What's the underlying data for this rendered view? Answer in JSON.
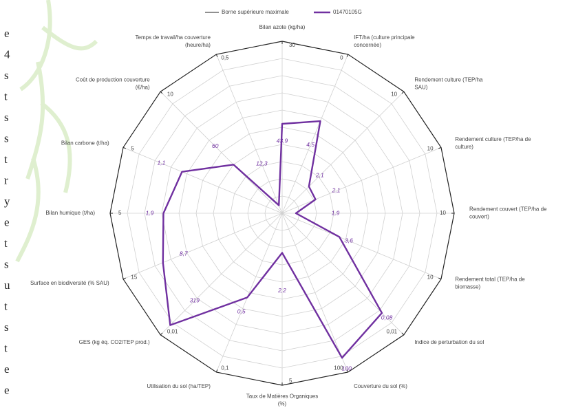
{
  "chart_data": {
    "type": "radar",
    "legend": [
      "Borne supérieure maximale"
    ],
    "rlim": [
      0,
      100
    ],
    "axes": [
      {
        "label_lines": [
          "Bilan azote (kg/ha)"
        ],
        "max": 30
      },
      {
        "label_lines": [
          "IFT/ha (culture principale",
          "concernée)"
        ],
        "max": 0
      },
      {
        "label_lines": [
          "Rendement culture (TEP/ha",
          "SAU)"
        ],
        "max": 10
      },
      {
        "label_lines": [
          "Rendement culture (TEP/ha de",
          "culture)"
        ],
        "max": 10
      },
      {
        "label_lines": [
          "Rendement couvert (TEP/ha de",
          "couvert)"
        ],
        "max": 10
      },
      {
        "label_lines": [
          "Rendement total (TEP/ha de",
          "biomasse)"
        ],
        "max": 10
      },
      {
        "label_lines": [
          "Indice de perturbation du sol"
        ],
        "max": {
          "value": 0.01,
          "label": "0,01"
        }
      },
      {
        "label_lines": [
          "Couverture du sol (%)"
        ],
        "max": 100
      },
      {
        "label_lines": [
          "Taux de Matières Organiques",
          "(%)"
        ],
        "max": 5
      },
      {
        "label_lines": [
          "Utilisation du sol (ha/TEP)"
        ],
        "max": {
          "value": 0.1,
          "label": "0,1"
        }
      },
      {
        "label_lines": [
          "GES (kg éq. CO2/TEP prod.)"
        ],
        "max": {
          "value": 0.01,
          "label": "0,01"
        }
      },
      {
        "label_lines": [
          "Surface en biodiversité (% SAU)"
        ],
        "max": 15
      },
      {
        "label_lines": [
          "Bilan humique (t/ha)"
        ],
        "max": 5
      },
      {
        "label_lines": [
          "Bilan carbone (t/ha)"
        ],
        "max": 5
      },
      {
        "label_lines": [
          "Coût de production couverture",
          "(€/ha)"
        ],
        "max": 10
      },
      {
        "label_lines": [
          "Temps de travail/ha couverture",
          "(heure/ha)"
        ],
        "max": {
          "value": 0.5,
          "label": "0,5"
        }
      }
    ],
    "series": [
      {
        "name": "01470105G",
        "color": "#7030a0",
        "values": [
          52,
          58,
          22,
          21,
          8,
          36,
          82,
          91,
          23,
          53,
          92,
          75,
          69,
          63,
          40,
          5
        ],
        "point_labels": [
          "43,9",
          "4,5",
          "2,1",
          "2,1",
          "1,9",
          "3,6",
          "0,08",
          "100",
          "2,2",
          "0,5",
          "319",
          "8,7",
          "1,9",
          "1,1",
          "60",
          "12,3"
        ]
      }
    ],
    "outline_color": "#222222",
    "margin_letters": [
      "e",
      "4",
      "s",
      "t",
      "s",
      "s",
      "t",
      "r",
      "y",
      "e",
      "t",
      "s",
      "u",
      "t",
      "s",
      "t",
      "e",
      "e"
    ]
  }
}
